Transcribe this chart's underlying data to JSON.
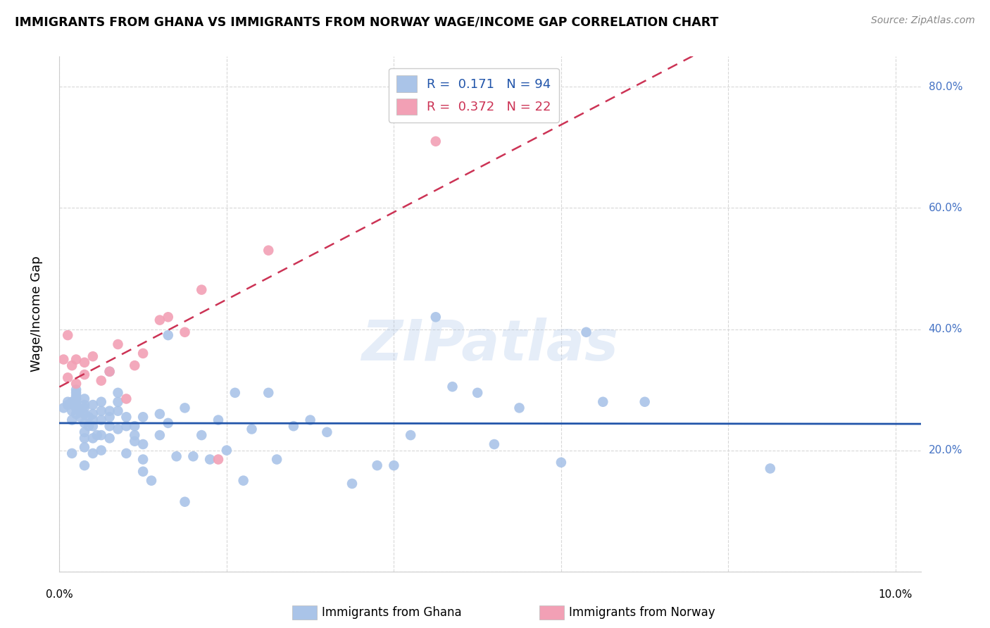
{
  "title": "IMMIGRANTS FROM GHANA VS IMMIGRANTS FROM NORWAY WAGE/INCOME GAP CORRELATION CHART",
  "source": "Source: ZipAtlas.com",
  "ylabel": "Wage/Income Gap",
  "background_color": "#ffffff",
  "grid_color": "#d8d8d8",
  "ghana_color": "#aac4e8",
  "norway_color": "#f2a0b5",
  "ghana_line_color": "#2255aa",
  "norway_line_color": "#cc3355",
  "ghana_R": 0.171,
  "ghana_N": 94,
  "norway_R": 0.372,
  "norway_N": 22,
  "watermark": "ZIPatlas",
  "legend_label_ghana": "Immigrants from Ghana",
  "legend_label_norway": "Immigrants from Norway",
  "ghana_points_x": [
    0.0005,
    0.001,
    0.001,
    0.0015,
    0.0015,
    0.0015,
    0.0015,
    0.002,
    0.002,
    0.002,
    0.002,
    0.002,
    0.002,
    0.002,
    0.002,
    0.0025,
    0.0025,
    0.003,
    0.003,
    0.003,
    0.003,
    0.003,
    0.003,
    0.003,
    0.003,
    0.003,
    0.0035,
    0.0035,
    0.004,
    0.004,
    0.004,
    0.004,
    0.004,
    0.004,
    0.0045,
    0.005,
    0.005,
    0.005,
    0.005,
    0.005,
    0.006,
    0.006,
    0.006,
    0.006,
    0.006,
    0.007,
    0.007,
    0.007,
    0.007,
    0.008,
    0.008,
    0.008,
    0.009,
    0.009,
    0.009,
    0.01,
    0.01,
    0.01,
    0.01,
    0.011,
    0.012,
    0.012,
    0.013,
    0.013,
    0.014,
    0.015,
    0.015,
    0.016,
    0.017,
    0.018,
    0.019,
    0.02,
    0.021,
    0.022,
    0.023,
    0.025,
    0.026,
    0.028,
    0.03,
    0.032,
    0.035,
    0.038,
    0.04,
    0.042,
    0.045,
    0.047,
    0.05,
    0.052,
    0.055,
    0.06,
    0.063,
    0.065,
    0.07,
    0.085
  ],
  "ghana_points_y": [
    0.27,
    0.275,
    0.28,
    0.195,
    0.25,
    0.265,
    0.28,
    0.26,
    0.27,
    0.275,
    0.28,
    0.285,
    0.29,
    0.295,
    0.3,
    0.255,
    0.265,
    0.175,
    0.205,
    0.22,
    0.23,
    0.245,
    0.26,
    0.27,
    0.275,
    0.285,
    0.24,
    0.255,
    0.195,
    0.22,
    0.24,
    0.25,
    0.26,
    0.275,
    0.225,
    0.2,
    0.225,
    0.25,
    0.265,
    0.28,
    0.22,
    0.24,
    0.255,
    0.265,
    0.33,
    0.235,
    0.265,
    0.28,
    0.295,
    0.195,
    0.24,
    0.255,
    0.215,
    0.225,
    0.24,
    0.165,
    0.185,
    0.21,
    0.255,
    0.15,
    0.225,
    0.26,
    0.245,
    0.39,
    0.19,
    0.115,
    0.27,
    0.19,
    0.225,
    0.185,
    0.25,
    0.2,
    0.295,
    0.15,
    0.235,
    0.295,
    0.185,
    0.24,
    0.25,
    0.23,
    0.145,
    0.175,
    0.175,
    0.225,
    0.42,
    0.305,
    0.295,
    0.21,
    0.27,
    0.18,
    0.395,
    0.28,
    0.28,
    0.17
  ],
  "norway_points_x": [
    0.0005,
    0.001,
    0.001,
    0.0015,
    0.002,
    0.002,
    0.003,
    0.003,
    0.004,
    0.005,
    0.006,
    0.007,
    0.008,
    0.009,
    0.01,
    0.012,
    0.013,
    0.015,
    0.017,
    0.019,
    0.025,
    0.045
  ],
  "norway_points_y": [
    0.35,
    0.32,
    0.39,
    0.34,
    0.31,
    0.35,
    0.325,
    0.345,
    0.355,
    0.315,
    0.33,
    0.375,
    0.285,
    0.34,
    0.36,
    0.415,
    0.42,
    0.395,
    0.465,
    0.185,
    0.53,
    0.71
  ]
}
